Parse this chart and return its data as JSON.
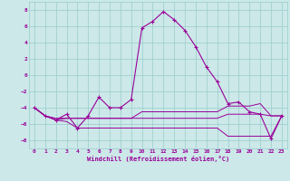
{
  "x": [
    0,
    1,
    2,
    3,
    4,
    5,
    6,
    7,
    8,
    9,
    10,
    11,
    12,
    13,
    14,
    15,
    16,
    17,
    18,
    19,
    20,
    21,
    22,
    23
  ],
  "line1": [
    -4,
    -5,
    -5.5,
    -4.8,
    -6.5,
    -5.0,
    -2.7,
    -4.0,
    -4.0,
    -3.0,
    5.8,
    6.6,
    7.8,
    6.8,
    5.5,
    3.5,
    1.0,
    -0.8,
    -3.5,
    -3.3,
    -4.5,
    -4.8,
    -7.8,
    -5.0
  ],
  "line2": [
    -4,
    -5,
    -5.5,
    -5.3,
    -5.3,
    -5.3,
    -5.3,
    -5.3,
    -5.3,
    -5.3,
    -5.3,
    -5.3,
    -5.3,
    -5.3,
    -5.3,
    -5.3,
    -5.3,
    -5.3,
    -4.8,
    -4.8,
    -4.8,
    -4.8,
    -5.0,
    -5.0
  ],
  "line3": [
    -4,
    -5,
    -5.5,
    -5.7,
    -6.5,
    -6.5,
    -6.5,
    -6.5,
    -6.5,
    -6.5,
    -6.5,
    -6.5,
    -6.5,
    -6.5,
    -6.5,
    -6.5,
    -6.5,
    -6.5,
    -7.5,
    -7.5,
    -7.5,
    -7.5,
    -7.5,
    -5.0
  ],
  "line4": [
    -4,
    -5,
    -5.3,
    -5.3,
    -5.3,
    -5.3,
    -5.3,
    -5.3,
    -5.3,
    -5.3,
    -4.5,
    -4.5,
    -4.5,
    -4.5,
    -4.5,
    -4.5,
    -4.5,
    -4.5,
    -3.8,
    -3.8,
    -3.8,
    -3.5,
    -5.0,
    -5.0
  ],
  "line_color": "#990099",
  "bg_color": "#cce8e8",
  "grid_color": "#99cccc",
  "xlabel": "Windchill (Refroidissement éolien,°C)",
  "ylim": [
    -9,
    9
  ],
  "xlim": [
    -0.5,
    23.5
  ],
  "yticks": [
    -8,
    -6,
    -4,
    -2,
    0,
    2,
    4,
    6,
    8
  ],
  "xticks": [
    0,
    1,
    2,
    3,
    4,
    5,
    6,
    7,
    8,
    9,
    10,
    11,
    12,
    13,
    14,
    15,
    16,
    17,
    18,
    19,
    20,
    21,
    22,
    23
  ]
}
